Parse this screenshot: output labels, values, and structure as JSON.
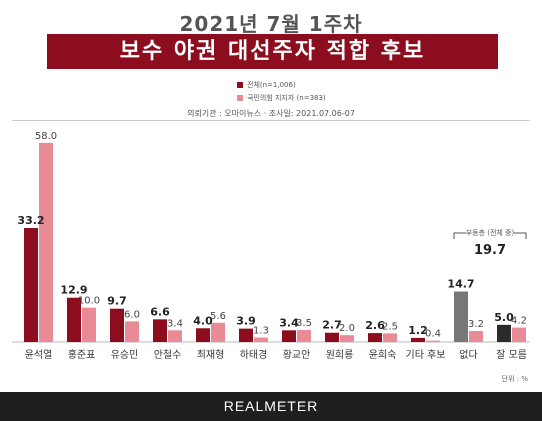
{
  "header": {
    "subtitle": "2021년 7월 1주차",
    "title": "보수 야권 대선주자 적합 후보"
  },
  "legend": {
    "overall_label": "전체(n=1,006)",
    "ppp_label": "국민의힘 지지자 (n=383)"
  },
  "source_line": "의뢰기관 : 오마이뉴스 · 조사일: 2021.07.06-07",
  "unit_label": "단위 : %",
  "footer_logo": "REALMETER",
  "colors": {
    "overall": "#8b0d1e",
    "ppp": "#e98b96",
    "none_overall": "#777777",
    "dontknow_overall": "#2b2b2b",
    "bracket": "#555555"
  },
  "chart_data": {
    "type": "bar",
    "title": "보수 야권 대선주자 적합 후보",
    "categories": [
      "윤석열",
      "홍준표",
      "유승민",
      "안철수",
      "최재형",
      "하태경",
      "황교안",
      "원희룡",
      "윤희숙",
      "기타 후보",
      "없다",
      "잘 모름"
    ],
    "series": [
      {
        "name": "전체(n=1,006)",
        "values": [
          33.2,
          12.9,
          9.7,
          6.6,
          4.0,
          3.9,
          3.4,
          2.7,
          2.6,
          1.2,
          14.7,
          5.0
        ]
      },
      {
        "name": "국민의힘 지지자 (n=383)",
        "values": [
          58.0,
          10.0,
          6.0,
          3.4,
          5.6,
          1.3,
          3.5,
          2.0,
          2.5,
          0.4,
          3.2,
          4.2
        ]
      }
    ],
    "annotation": {
      "label": "부동층 (전체 중)",
      "value": "19.7"
    },
    "ylim": [
      0,
      60
    ],
    "grid": false
  }
}
